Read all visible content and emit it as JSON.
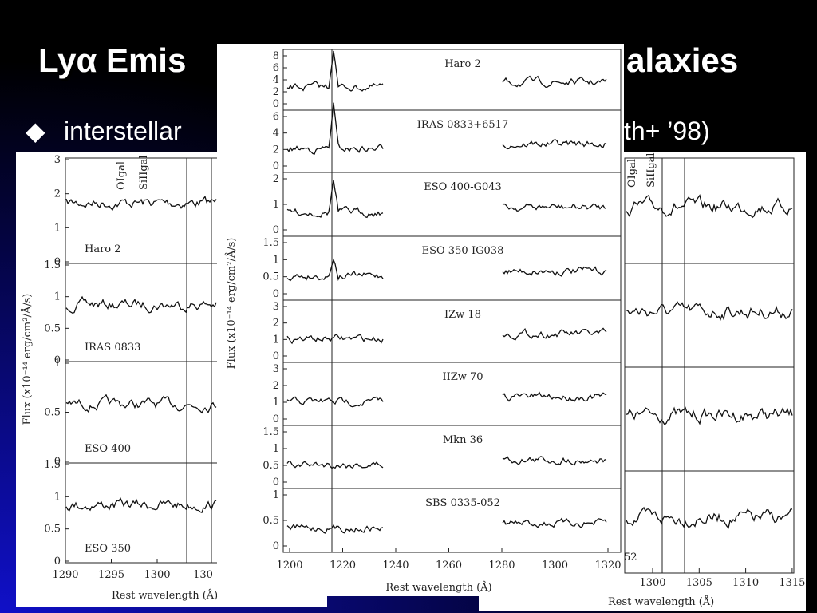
{
  "title": {
    "left": "Lyα Emis",
    "right": "alaxies"
  },
  "bullet": {
    "left": "interstellar",
    "right": "th+ ’98)"
  },
  "left_figure": {
    "y_label": "Flux (x10⁻¹⁴ erg/cm²/Å/s)",
    "x_label": "Rest wavelength (Å)",
    "x_ticks": [
      "1290",
      "1295",
      "1300",
      "130"
    ],
    "line_labels": [
      "OIgal",
      "SiIIgal"
    ],
    "panels": [
      {
        "label": "Haro 2",
        "y_ticks": [
          "3",
          "2",
          "1",
          "0"
        ]
      },
      {
        "label": "IRAS 0833",
        "y_ticks": [
          "1.5",
          "1",
          "0.5",
          "0"
        ]
      },
      {
        "label": "ESO 400",
        "y_ticks": [
          "1",
          "0.5",
          "0"
        ]
      },
      {
        "label": "ESO 350",
        "y_ticks": [
          "1.5",
          "1",
          "0.5",
          "0"
        ]
      }
    ]
  },
  "middle_figure": {
    "y_label": "Flux (x10⁻¹⁴ erg/cm²/Å/s)",
    "x_label": "Rest wavelength (Å)",
    "x_ticks": [
      "1200",
      "1220",
      "1240",
      "1260",
      "1280",
      "1300",
      "1320"
    ],
    "panels": [
      {
        "label": "Haro 2",
        "y_ticks": [
          "8",
          "6",
          "4",
          "2",
          "0"
        ]
      },
      {
        "label": "IRAS 0833+6517",
        "y_ticks": [
          "6",
          "4",
          "2",
          "0"
        ]
      },
      {
        "label": "ESO 400-G043",
        "y_ticks": [
          "2",
          "1",
          "0"
        ]
      },
      {
        "label": "ESO 350-IG038",
        "y_ticks": [
          "1.5",
          "1",
          "0.5",
          "0"
        ]
      },
      {
        "label": "IZw 18",
        "y_ticks": [
          "3",
          "2",
          "1",
          "0"
        ]
      },
      {
        "label": "IIZw 70",
        "y_ticks": [
          "3",
          "2",
          "1",
          "0"
        ]
      },
      {
        "label": "Mkn 36",
        "y_ticks": [
          "1.5",
          "1",
          "0.5",
          "0"
        ]
      },
      {
        "label": "SBS 0335-052",
        "y_ticks": [
          "1",
          "0.5",
          "0"
        ]
      }
    ]
  },
  "right_figure": {
    "x_label": "Rest wavelength (Å)",
    "x_ticks": [
      "1300",
      "1305",
      "1310",
      "1315"
    ],
    "line_labels": [
      "OIgal",
      "SiIIgal"
    ],
    "panel_label_fragment": "52"
  }
}
